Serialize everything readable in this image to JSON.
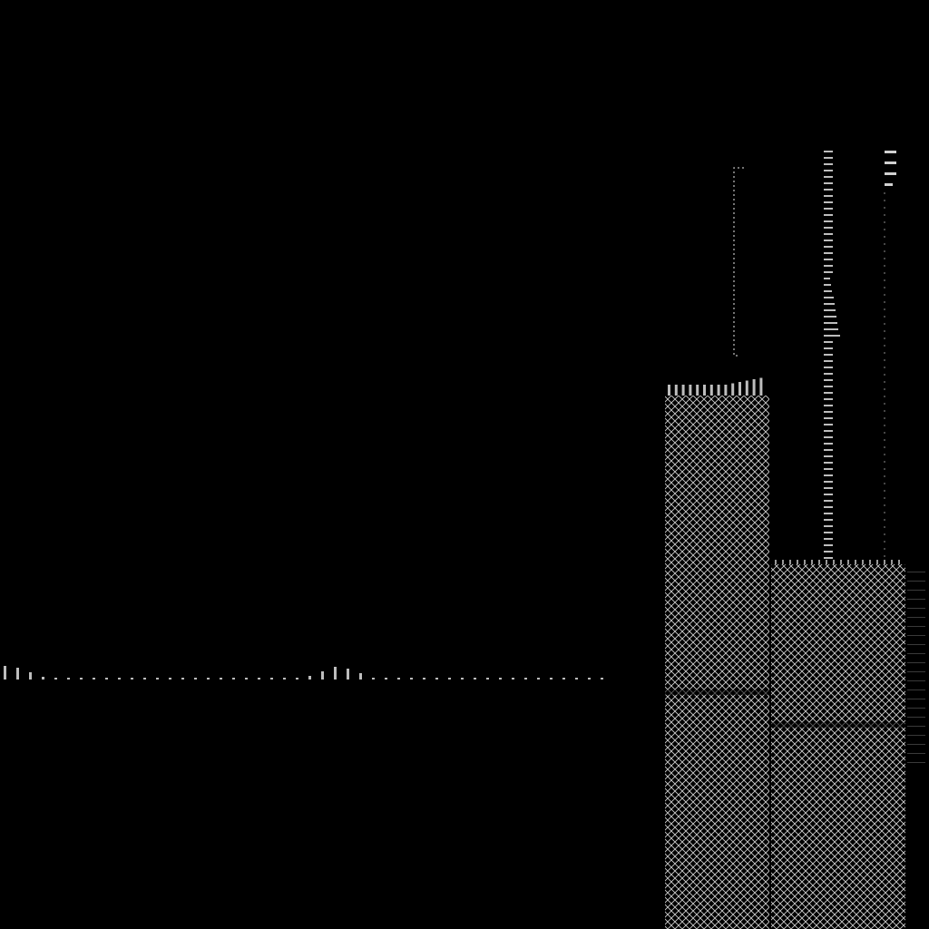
{
  "canvas": {
    "background": "#000000",
    "ink": "#d0d0d0",
    "ink_dim": "#8a8a8a"
  },
  "scene": {
    "panels": [
      {
        "id": "left-panel",
        "pattern": "crosshatch"
      },
      {
        "id": "right-panel",
        "pattern": "crosshatch"
      }
    ],
    "elements": [
      "tick-baseline",
      "hook-outline",
      "stacked-tick-column",
      "top-right-bars",
      "vertical-dotted-guide",
      "left-panel-tick-cap",
      "right-panel-edge-ticks"
    ]
  }
}
